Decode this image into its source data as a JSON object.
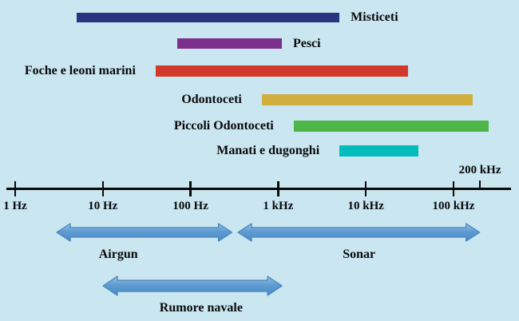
{
  "figure": {
    "background_color": "#c9e6f1",
    "text_color": "#0a0a0a"
  },
  "chart_data": {
    "type": "bar",
    "subtype": "horizontal-frequency-ranges",
    "title": "",
    "x_axis": {
      "scale": "log10",
      "unit": "Hz",
      "min_hz": 1,
      "max_hz": 200000,
      "grid": false,
      "ticks": [
        {
          "label": "1 Hz",
          "hz": 1
        },
        {
          "label": "10 Hz",
          "hz": 10
        },
        {
          "label": "100 Hz",
          "hz": 100
        },
        {
          "label": "1 kHz",
          "hz": 1000
        },
        {
          "label": "10 kHz",
          "hz": 10000
        },
        {
          "label": "100 kHz",
          "hz": 100000
        }
      ],
      "end_tick": {
        "label": "200 kHz",
        "hz": 200000
      }
    },
    "series": [
      {
        "name": "Misticeti",
        "color": "#2a3480",
        "min_hz_est": 5,
        "max_hz_est": 5000,
        "label_side": "right"
      },
      {
        "name": "Pesci",
        "color": "#7d2f8d",
        "min_hz_est": 70,
        "max_hz_est": 1100,
        "label_side": "right"
      },
      {
        "name": "Foche e leoni marini",
        "color": "#d13a2b",
        "min_hz_est": 40,
        "max_hz_est": 30000,
        "label_side": "left"
      },
      {
        "name": "Odontoceti",
        "color": "#d1af3e",
        "min_hz_est": 650,
        "max_hz_est": 165000,
        "label_side": "left"
      },
      {
        "name": "Piccoli Odontoceti",
        "color": "#4cb748",
        "min_hz_est": 1500,
        "max_hz_est": 250000,
        "label_side": "left"
      },
      {
        "name": "Manati e dugonghi",
        "color": "#00bcba",
        "min_hz_est": 5000,
        "max_hz_est": 40000,
        "label_side": "left"
      }
    ],
    "sources": [
      {
        "name": "Airgun",
        "min_hz_est": 3,
        "max_hz_est": 300
      },
      {
        "name": "Sonar",
        "min_hz_est": 350,
        "max_hz_est": 200000
      },
      {
        "name": "Rumore navale",
        "min_hz_est": 10,
        "max_hz_est": 1100
      }
    ],
    "arrow_fill_color": "#5e9bd2",
    "arrow_border_color": "#4a86ba",
    "axis_color": "#0a0a0a"
  }
}
